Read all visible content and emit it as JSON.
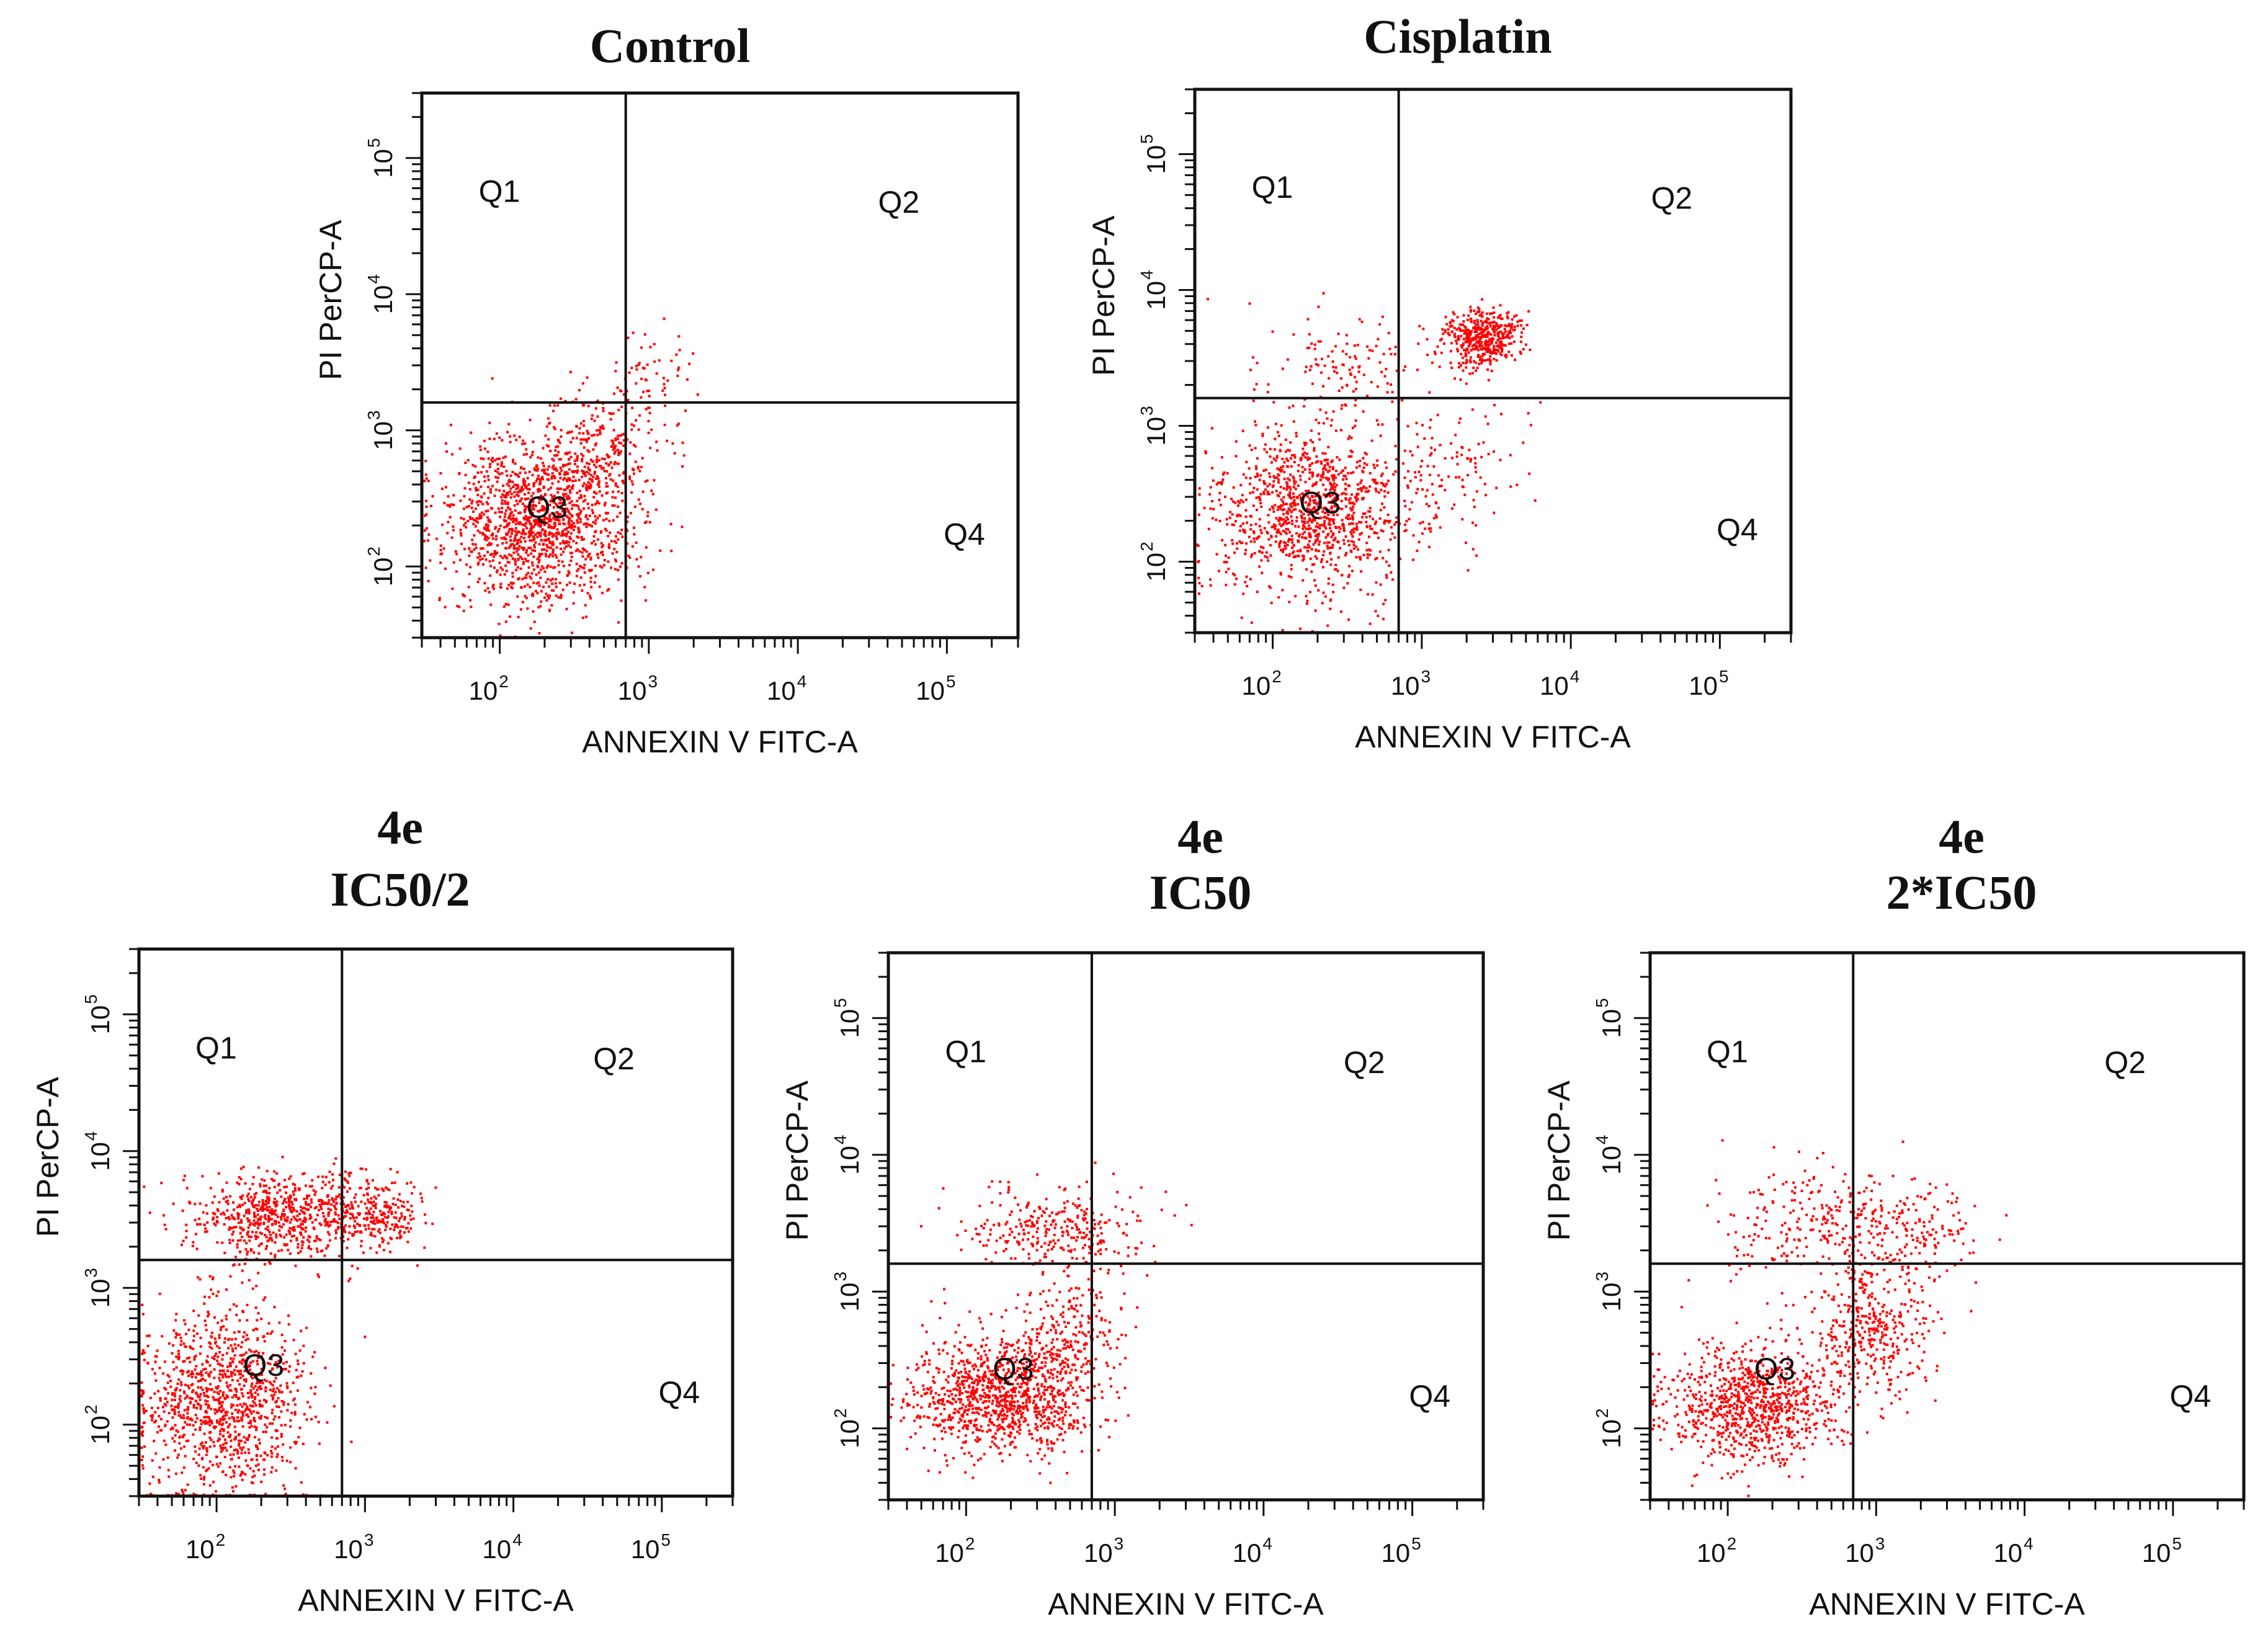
{
  "chart_data": {
    "type": "scatter",
    "x_axis_label": "ANNEXIN V FITC-A",
    "y_axis_label": "PI PerCP-A",
    "scale": "log10",
    "xlim": [
      30,
      300000
    ],
    "ylim": [
      30,
      300000
    ],
    "tick_base": "10",
    "tick_exponents": [
      "2",
      "3",
      "4",
      "5"
    ],
    "point_color": "#ff0000",
    "quadrant_labels": [
      "Q1",
      "Q2",
      "Q3",
      "Q4"
    ],
    "panels": [
      {
        "id": "control",
        "title_lines": [
          "Control"
        ],
        "gate": {
          "x": 700,
          "y": 1600
        },
        "clusters": [
          {
            "quadrant": "Q3",
            "center": [
              180,
              220
            ],
            "spread": [
              0.32,
              0.3
            ],
            "count": 1400
          },
          {
            "quadrant": "Q3",
            "center": [
              450,
              700
            ],
            "spread": [
              0.2,
              0.25
            ],
            "count": 250
          },
          {
            "quadrant": "Q2",
            "center": [
              1000,
              2500
            ],
            "spread": [
              0.15,
              0.18
            ],
            "count": 60
          }
        ]
      },
      {
        "id": "cisplatin",
        "title_lines": [
          "Cisplatin"
        ],
        "gate": {
          "x": 700,
          "y": 1600
        },
        "clusters": [
          {
            "quadrant": "Q3",
            "center": [
              170,
              250
            ],
            "spread": [
              0.32,
              0.32
            ],
            "count": 1100
          },
          {
            "quadrant": "Q2",
            "center": [
              2500,
              4500
            ],
            "spread": [
              0.13,
              0.1
            ],
            "count": 450
          },
          {
            "quadrant": "Q1",
            "center": [
              300,
              3000
            ],
            "spread": [
              0.28,
              0.2
            ],
            "count": 120
          },
          {
            "quadrant": "Q4",
            "center": [
              1500,
              500
            ],
            "spread": [
              0.25,
              0.3
            ],
            "count": 120
          }
        ]
      },
      {
        "id": "4e-ic50-half",
        "title_lines": [
          "4e",
          "IC50/2"
        ],
        "gate": {
          "x": 700,
          "y": 1600
        },
        "clusters": [
          {
            "quadrant": "Q3",
            "center": [
              110,
              150
            ],
            "spread": [
              0.28,
              0.33
            ],
            "count": 1100
          },
          {
            "quadrant": "Q1",
            "center": [
              250,
              3500
            ],
            "spread": [
              0.32,
              0.15
            ],
            "count": 650
          },
          {
            "quadrant": "Q2",
            "center": [
              1100,
              3500
            ],
            "spread": [
              0.18,
              0.13
            ],
            "count": 250
          }
        ]
      },
      {
        "id": "4e-ic50",
        "title_lines": [
          "4e",
          "IC50"
        ],
        "gate": {
          "x": 700,
          "y": 1600
        },
        "clusters": [
          {
            "quadrant": "Q3",
            "center": [
              180,
              180
            ],
            "spread": [
              0.3,
              0.22
            ],
            "count": 1100
          },
          {
            "quadrant": "Q3",
            "center": [
              500,
              500
            ],
            "spread": [
              0.18,
              0.22
            ],
            "count": 200
          },
          {
            "quadrant": "Q1",
            "center": [
              400,
              3000
            ],
            "spread": [
              0.28,
              0.15
            ],
            "count": 300
          }
        ]
      },
      {
        "id": "4e-2xic50",
        "title_lines": [
          "4e",
          "2*IC50"
        ],
        "gate": {
          "x": 700,
          "y": 1600
        },
        "clusters": [
          {
            "quadrant": "Q3",
            "center": [
              150,
              150
            ],
            "spread": [
              0.3,
              0.22
            ],
            "count": 900
          },
          {
            "quadrant": "Q4",
            "center": [
              900,
              500
            ],
            "spread": [
              0.22,
              0.22
            ],
            "count": 350
          },
          {
            "quadrant": "Q1",
            "center": [
              400,
              3000
            ],
            "spread": [
              0.3,
              0.2
            ],
            "count": 220
          },
          {
            "quadrant": "Q2",
            "center": [
              1500,
              3000
            ],
            "spread": [
              0.25,
              0.2
            ],
            "count": 200
          }
        ]
      }
    ]
  }
}
